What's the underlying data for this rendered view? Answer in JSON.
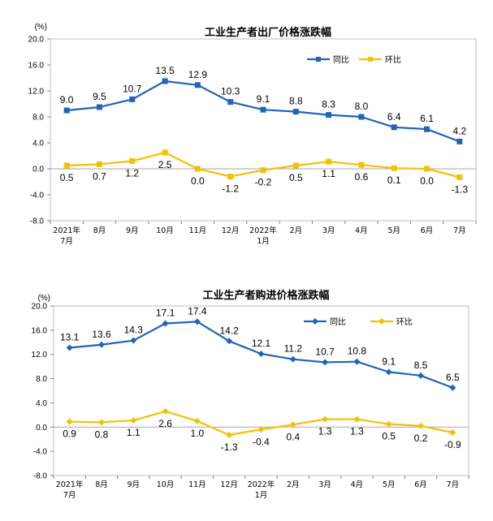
{
  "chart_data": [
    {
      "type": "line",
      "title": "工业生产者出厂价格涨跌幅",
      "unit": "(%)",
      "categories": [
        [
          "2021年",
          "7月"
        ],
        [
          "8月"
        ],
        [
          "9月"
        ],
        [
          "10月"
        ],
        [
          "11月"
        ],
        [
          "12月"
        ],
        [
          "2022年",
          "1月"
        ],
        [
          "2月"
        ],
        [
          "3月"
        ],
        [
          "4月"
        ],
        [
          "5月"
        ],
        [
          "6月"
        ],
        [
          "7月"
        ]
      ],
      "ylim": [
        -8,
        20
      ],
      "yticks": [
        "20.0",
        "16.0",
        "12.0",
        "8.0",
        "4.0",
        "0.0",
        "-4.0",
        "-8.0"
      ],
      "ytick_values": [
        20,
        16,
        12,
        8,
        4,
        0,
        -4,
        -8
      ],
      "marker": "square",
      "series": [
        {
          "name": "同比",
          "color": "#1f64b9",
          "values": [
            9.0,
            9.5,
            10.7,
            13.5,
            12.9,
            10.3,
            9.1,
            8.8,
            8.3,
            8.0,
            6.4,
            6.1,
            4.2
          ],
          "labels": [
            "9.0",
            "9.5",
            "10.7",
            "13.5",
            "12.9",
            "10.3",
            "9.1",
            "8.8",
            "8.3",
            "8.0",
            "6.4",
            "6.1",
            "4.2"
          ]
        },
        {
          "name": "环比",
          "color": "#f5c000",
          "values": [
            0.5,
            0.7,
            1.2,
            2.5,
            0.0,
            -1.2,
            -0.2,
            0.5,
            1.1,
            0.6,
            0.1,
            0.0,
            -1.3
          ],
          "labels": [
            "0.5",
            "0.7",
            "1.2",
            "2.5",
            "0.0",
            "-1.2",
            "-0.2",
            "0.5",
            "1.1",
            "0.6",
            "0.1",
            "0.0",
            "-1.3"
          ]
        }
      ]
    },
    {
      "type": "line",
      "title": "工业生产者购进价格涨跌幅",
      "unit": "(%)",
      "categories": [
        [
          "2021年",
          "7月"
        ],
        [
          "8月"
        ],
        [
          "9月"
        ],
        [
          "10月"
        ],
        [
          "11月"
        ],
        [
          "12月"
        ],
        [
          "2022年",
          "1月"
        ],
        [
          "2月"
        ],
        [
          "3月"
        ],
        [
          "4月"
        ],
        [
          "5月"
        ],
        [
          "6月"
        ],
        [
          "7月"
        ]
      ],
      "ylim": [
        -8,
        20
      ],
      "yticks": [
        "20.0",
        "16.0",
        "12.0",
        "8.0",
        "4.0",
        "0.0",
        "-4.0",
        "-8.0"
      ],
      "ytick_values": [
        20,
        16,
        12,
        8,
        4,
        0,
        -4,
        -8
      ],
      "marker": "diamond",
      "series": [
        {
          "name": "同比",
          "color": "#1f64b9",
          "values": [
            13.1,
            13.6,
            14.3,
            17.1,
            17.4,
            14.2,
            12.1,
            11.2,
            10.7,
            10.8,
            9.1,
            8.5,
            6.5
          ],
          "labels": [
            "13.1",
            "13.6",
            "14.3",
            "17.1",
            "17.4",
            "14.2",
            "12.1",
            "11.2",
            "10.7",
            "10.8",
            "9.1",
            "8.5",
            "6.5"
          ]
        },
        {
          "name": "环比",
          "color": "#f5c000",
          "values": [
            0.9,
            0.8,
            1.1,
            2.6,
            1.0,
            -1.3,
            -0.4,
            0.4,
            1.3,
            1.3,
            0.5,
            0.2,
            -0.9
          ],
          "labels": [
            "0.9",
            "0.8",
            "1.1",
            "2.6",
            "1.0",
            "-1.3",
            "-0.4",
            "0.4",
            "1.3",
            "1.3",
            "0.5",
            "0.2",
            "-0.9"
          ]
        }
      ]
    }
  ]
}
